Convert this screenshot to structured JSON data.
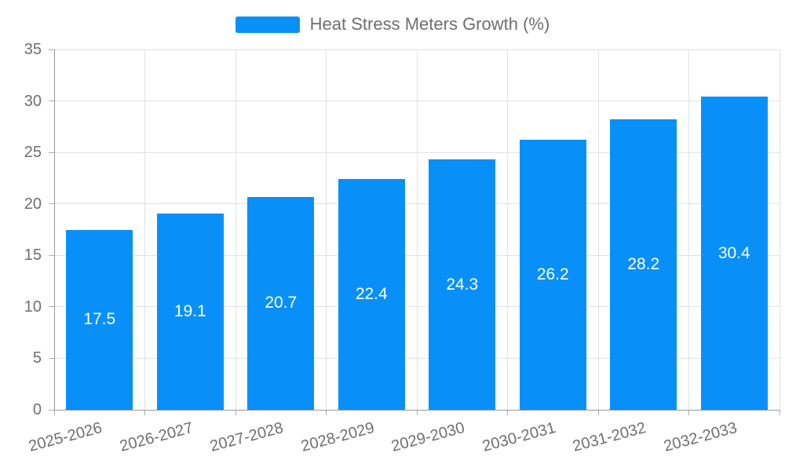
{
  "chart_data": {
    "type": "bar",
    "title": "Heat Stress Meters Growth (%)",
    "legend": {
      "position": "top",
      "label": "Heat Stress Meters Growth (%)"
    },
    "categories": [
      "2025-2026",
      "2026-2027",
      "2027-2028",
      "2028-2029",
      "2029-2030",
      "2030-2031",
      "2031-2032",
      "2032-2033"
    ],
    "values": [
      17.5,
      19.1,
      20.7,
      22.4,
      24.3,
      26.2,
      28.2,
      30.4
    ],
    "xlabel": "",
    "ylabel": "",
    "ylim": [
      0,
      35
    ],
    "y_ticks": [
      0,
      5,
      10,
      15,
      20,
      25,
      30,
      35
    ],
    "grid": true,
    "x_label_rotation_deg": -15,
    "colors": {
      "bar": "#0990F8",
      "value_label": "#FFFFFF",
      "grid": "#E2E2E2",
      "axis": "#999999",
      "tick": "#ABABAB",
      "text": "#6F6F6F"
    }
  }
}
